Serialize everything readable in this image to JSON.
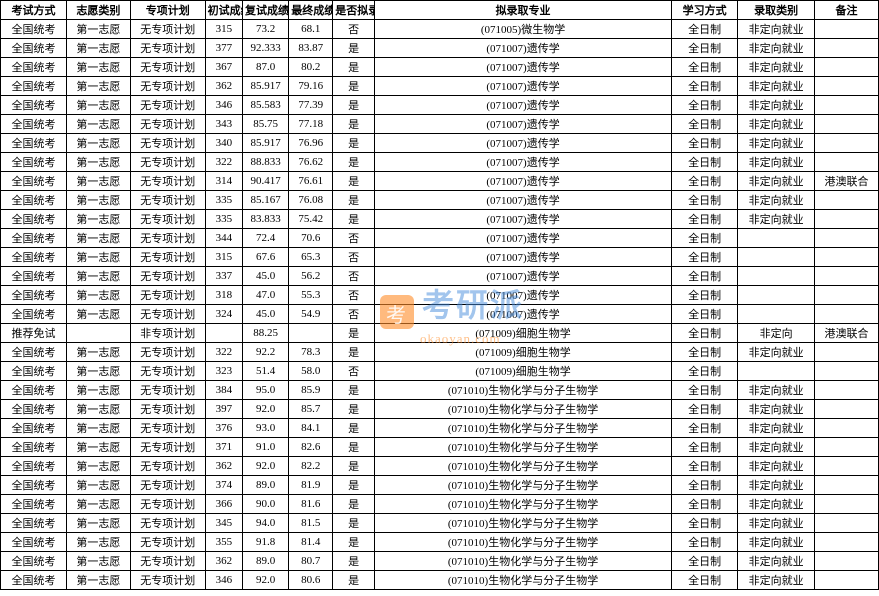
{
  "table": {
    "columns": [
      "考试方式",
      "志愿类别",
      "专项计划",
      "初试成绩",
      "复试成绩",
      "最终成绩",
      "是否拟录取",
      "拟录取专业",
      "学习方式",
      "录取类别",
      "备注"
    ],
    "rows": [
      [
        "全国统考",
        "第一志愿",
        "无专项计划",
        "315",
        "73.2",
        "68.1",
        "否",
        "(071005)微生物学",
        "全日制",
        "非定向就业",
        ""
      ],
      [
        "全国统考",
        "第一志愿",
        "无专项计划",
        "377",
        "92.333",
        "83.87",
        "是",
        "(071007)遗传学",
        "全日制",
        "非定向就业",
        ""
      ],
      [
        "全国统考",
        "第一志愿",
        "无专项计划",
        "367",
        "87.0",
        "80.2",
        "是",
        "(071007)遗传学",
        "全日制",
        "非定向就业",
        ""
      ],
      [
        "全国统考",
        "第一志愿",
        "无专项计划",
        "362",
        "85.917",
        "79.16",
        "是",
        "(071007)遗传学",
        "全日制",
        "非定向就业",
        ""
      ],
      [
        "全国统考",
        "第一志愿",
        "无专项计划",
        "346",
        "85.583",
        "77.39",
        "是",
        "(071007)遗传学",
        "全日制",
        "非定向就业",
        ""
      ],
      [
        "全国统考",
        "第一志愿",
        "无专项计划",
        "343",
        "85.75",
        "77.18",
        "是",
        "(071007)遗传学",
        "全日制",
        "非定向就业",
        ""
      ],
      [
        "全国统考",
        "第一志愿",
        "无专项计划",
        "340",
        "85.917",
        "76.96",
        "是",
        "(071007)遗传学",
        "全日制",
        "非定向就业",
        ""
      ],
      [
        "全国统考",
        "第一志愿",
        "无专项计划",
        "322",
        "88.833",
        "76.62",
        "是",
        "(071007)遗传学",
        "全日制",
        "非定向就业",
        ""
      ],
      [
        "全国统考",
        "第一志愿",
        "无专项计划",
        "314",
        "90.417",
        "76.61",
        "是",
        "(071007)遗传学",
        "全日制",
        "非定向就业",
        "港澳联合"
      ],
      [
        "全国统考",
        "第一志愿",
        "无专项计划",
        "335",
        "85.167",
        "76.08",
        "是",
        "(071007)遗传学",
        "全日制",
        "非定向就业",
        ""
      ],
      [
        "全国统考",
        "第一志愿",
        "无专项计划",
        "335",
        "83.833",
        "75.42",
        "是",
        "(071007)遗传学",
        "全日制",
        "非定向就业",
        ""
      ],
      [
        "全国统考",
        "第一志愿",
        "无专项计划",
        "344",
        "72.4",
        "70.6",
        "否",
        "(071007)遗传学",
        "全日制",
        "",
        ""
      ],
      [
        "全国统考",
        "第一志愿",
        "无专项计划",
        "315",
        "67.6",
        "65.3",
        "否",
        "(071007)遗传学",
        "全日制",
        "",
        ""
      ],
      [
        "全国统考",
        "第一志愿",
        "无专项计划",
        "337",
        "45.0",
        "56.2",
        "否",
        "(071007)遗传学",
        "全日制",
        "",
        ""
      ],
      [
        "全国统考",
        "第一志愿",
        "无专项计划",
        "318",
        "47.0",
        "55.3",
        "否",
        "(071007)遗传学",
        "全日制",
        "",
        ""
      ],
      [
        "全国统考",
        "第一志愿",
        "无专项计划",
        "324",
        "45.0",
        "54.9",
        "否",
        "(071007)遗传学",
        "全日制",
        "",
        ""
      ],
      [
        "推荐免试",
        "",
        "非专项计划",
        "",
        "88.25",
        "",
        "是",
        "(071009)细胞生物学",
        "全日制",
        "非定向",
        "港澳联合"
      ],
      [
        "全国统考",
        "第一志愿",
        "无专项计划",
        "322",
        "92.2",
        "78.3",
        "是",
        "(071009)细胞生物学",
        "全日制",
        "非定向就业",
        ""
      ],
      [
        "全国统考",
        "第一志愿",
        "无专项计划",
        "323",
        "51.4",
        "58.0",
        "否",
        "(071009)细胞生物学",
        "全日制",
        "",
        ""
      ],
      [
        "全国统考",
        "第一志愿",
        "无专项计划",
        "384",
        "95.0",
        "85.9",
        "是",
        "(071010)生物化学与分子生物学",
        "全日制",
        "非定向就业",
        ""
      ],
      [
        "全国统考",
        "第一志愿",
        "无专项计划",
        "397",
        "92.0",
        "85.7",
        "是",
        "(071010)生物化学与分子生物学",
        "全日制",
        "非定向就业",
        ""
      ],
      [
        "全国统考",
        "第一志愿",
        "无专项计划",
        "376",
        "93.0",
        "84.1",
        "是",
        "(071010)生物化学与分子生物学",
        "全日制",
        "非定向就业",
        ""
      ],
      [
        "全国统考",
        "第一志愿",
        "无专项计划",
        "371",
        "91.0",
        "82.6",
        "是",
        "(071010)生物化学与分子生物学",
        "全日制",
        "非定向就业",
        ""
      ],
      [
        "全国统考",
        "第一志愿",
        "无专项计划",
        "362",
        "92.0",
        "82.2",
        "是",
        "(071010)生物化学与分子生物学",
        "全日制",
        "非定向就业",
        ""
      ],
      [
        "全国统考",
        "第一志愿",
        "无专项计划",
        "374",
        "89.0",
        "81.9",
        "是",
        "(071010)生物化学与分子生物学",
        "全日制",
        "非定向就业",
        ""
      ],
      [
        "全国统考",
        "第一志愿",
        "无专项计划",
        "366",
        "90.0",
        "81.6",
        "是",
        "(071010)生物化学与分子生物学",
        "全日制",
        "非定向就业",
        ""
      ],
      [
        "全国统考",
        "第一志愿",
        "无专项计划",
        "345",
        "94.0",
        "81.5",
        "是",
        "(071010)生物化学与分子生物学",
        "全日制",
        "非定向就业",
        ""
      ],
      [
        "全国统考",
        "第一志愿",
        "无专项计划",
        "355",
        "91.8",
        "81.4",
        "是",
        "(071010)生物化学与分子生物学",
        "全日制",
        "非定向就业",
        ""
      ],
      [
        "全国统考",
        "第一志愿",
        "无专项计划",
        "362",
        "89.0",
        "80.7",
        "是",
        "(071010)生物化学与分子生物学",
        "全日制",
        "非定向就业",
        ""
      ],
      [
        "全国统考",
        "第一志愿",
        "无专项计划",
        "346",
        "92.0",
        "80.6",
        "是",
        "(071010)生物化学与分子生物学",
        "全日制",
        "非定向就业",
        ""
      ]
    ],
    "border_color": "#000000",
    "background_color": "#ffffff",
    "font_size": 11,
    "row_height": 18.5
  },
  "watermark": {
    "main_text": "考研派",
    "sub_text": "okaoyan.com",
    "main_color": "rgba(70,140,220,0.5)",
    "sub_color": "rgba(255,140,40,0.55)",
    "icon_bg": "rgba(255,140,40,0.6)"
  }
}
